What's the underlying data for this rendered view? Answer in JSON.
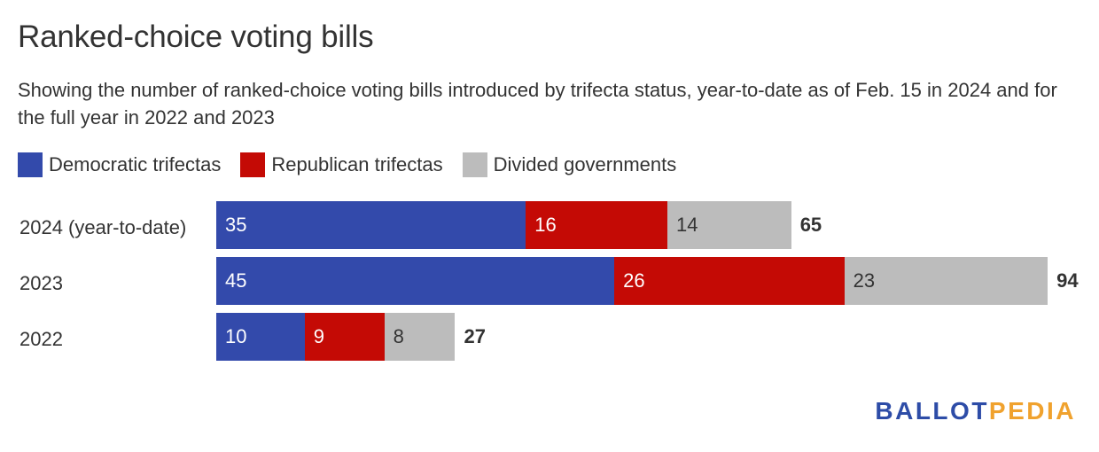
{
  "chart_data": {
    "type": "bar",
    "orientation": "horizontal",
    "stacked": true,
    "title": "Ranked-choice voting bills",
    "subtitle": "Showing the number of ranked-choice voting bills introduced by trifecta status, year-to-date as of Feb. 15 in 2024 and for the full year in 2022 and 2023",
    "categories": [
      "2024 (year-to-date)",
      "2023",
      "2022"
    ],
    "series": [
      {
        "name": "Democratic trifectas",
        "values": [
          35,
          45,
          10
        ],
        "color": "#334aab",
        "label_color": "#ffffff"
      },
      {
        "name": "Republican trifectas",
        "values": [
          16,
          26,
          9
        ],
        "color": "#c40a05",
        "label_color": "#ffffff"
      },
      {
        "name": "Divided governments",
        "values": [
          14,
          23,
          8
        ],
        "color": "#bcbcbc",
        "label_color": "#333333"
      }
    ],
    "totals": [
      65,
      94,
      27
    ],
    "legend_position": "top-left",
    "grid": false
  },
  "logo": {
    "part1": "BALLOT",
    "part2": "PEDIA"
  }
}
